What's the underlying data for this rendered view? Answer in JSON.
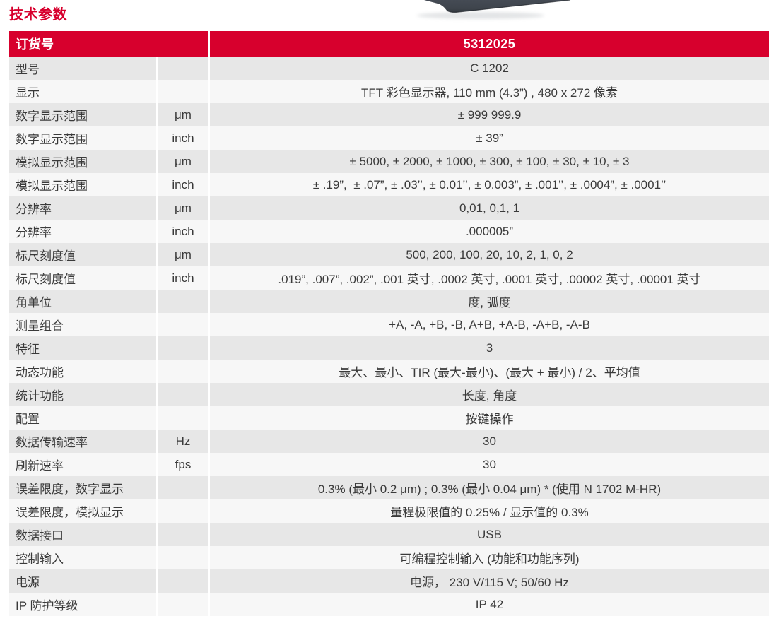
{
  "page": {
    "title": "技术参数",
    "colors": {
      "accent_red": "#d7002d",
      "row_gray": "#e7e7e7",
      "row_light": "#f7f7f7",
      "text": "#3a3a3a",
      "device_body": "#3e444c"
    }
  },
  "product_image": {
    "description": "bottom-corner-of-dark-device-photo-cropped-at-top-edge"
  },
  "table": {
    "header": {
      "label": "订货号",
      "value": "5312025"
    },
    "rows": [
      {
        "label": "型号",
        "unit": "",
        "value": "C 1202"
      },
      {
        "label": "显示",
        "unit": "",
        "value": "TFT 彩色显示器, 110 mm (4.3”) , 480 x 272 像素"
      },
      {
        "label": "数字显示范围",
        "unit": "μm",
        "value": "± 999 999.9"
      },
      {
        "label": "数字显示范围",
        "unit": "inch",
        "value": "± 39”"
      },
      {
        "label": "模拟显示范围",
        "unit": "μm",
        "value": "± 5000, ± 2000, ± 1000, ± 300, ± 100, ± 30, ± 10, ± 3"
      },
      {
        "label": "模拟显示范围",
        "unit": "inch",
        "value": "± .19”,  ± .07”, ± .03’’, ± 0.01’’, ± 0.003”, ± .001’’, ± .0004”, ± .0001’’"
      },
      {
        "label": "分辨率",
        "unit": "μm",
        "value": "0,01, 0,1, 1"
      },
      {
        "label": "分辨率",
        "unit": "inch",
        "value": ".000005”"
      },
      {
        "label": "标尺刻度值",
        "unit": "μm",
        "value": "500, 200, 100, 20, 10, 2, 1, 0, 2"
      },
      {
        "label": "标尺刻度值",
        "unit": "inch",
        "value": ".019”, .007”, .002”, .001 英寸, .0002 英寸, .0001 英寸, .00002 英寸, .00001 英寸"
      },
      {
        "label": "角单位",
        "unit": "",
        "value": "度, 弧度"
      },
      {
        "label": "测量组合",
        "unit": "",
        "value": "+A, -A, +B, -B, A+B, +A-B, -A+B, -A-B"
      },
      {
        "label": "特征",
        "unit": "",
        "value": "3"
      },
      {
        "label": "动态功能",
        "unit": "",
        "value": "最大、最小、TIR (最大-最小)、(最大 + 最小) / 2、平均值"
      },
      {
        "label": "统计功能",
        "unit": "",
        "value": "长度, 角度"
      },
      {
        "label": "配置",
        "unit": "",
        "value": "按键操作"
      },
      {
        "label": "数据传输速率",
        "unit": "Hz",
        "value": "30"
      },
      {
        "label": "刷新速率",
        "unit": "fps",
        "value": "30"
      },
      {
        "label": "误差限度，数字显示",
        "unit": "",
        "value": "0.3% (最小 0.2 μm) ; 0.3% (最小 0.04 μm) * (使用 N 1702 M-HR)"
      },
      {
        "label": "误差限度，模拟显示",
        "unit": "",
        "value": "量程极限值的 0.25% / 显示值的 0.3%"
      },
      {
        "label": "数据接口",
        "unit": "",
        "value": "USB"
      },
      {
        "label": "控制输入",
        "unit": "",
        "value": "可编程控制输入 (功能和功能序列)"
      },
      {
        "label": "电源",
        "unit": "",
        "value": "电源， 230 V/115 V; 50/60 Hz"
      },
      {
        "label": "IP 防护等级",
        "unit": "",
        "value": "IP 42"
      }
    ]
  }
}
